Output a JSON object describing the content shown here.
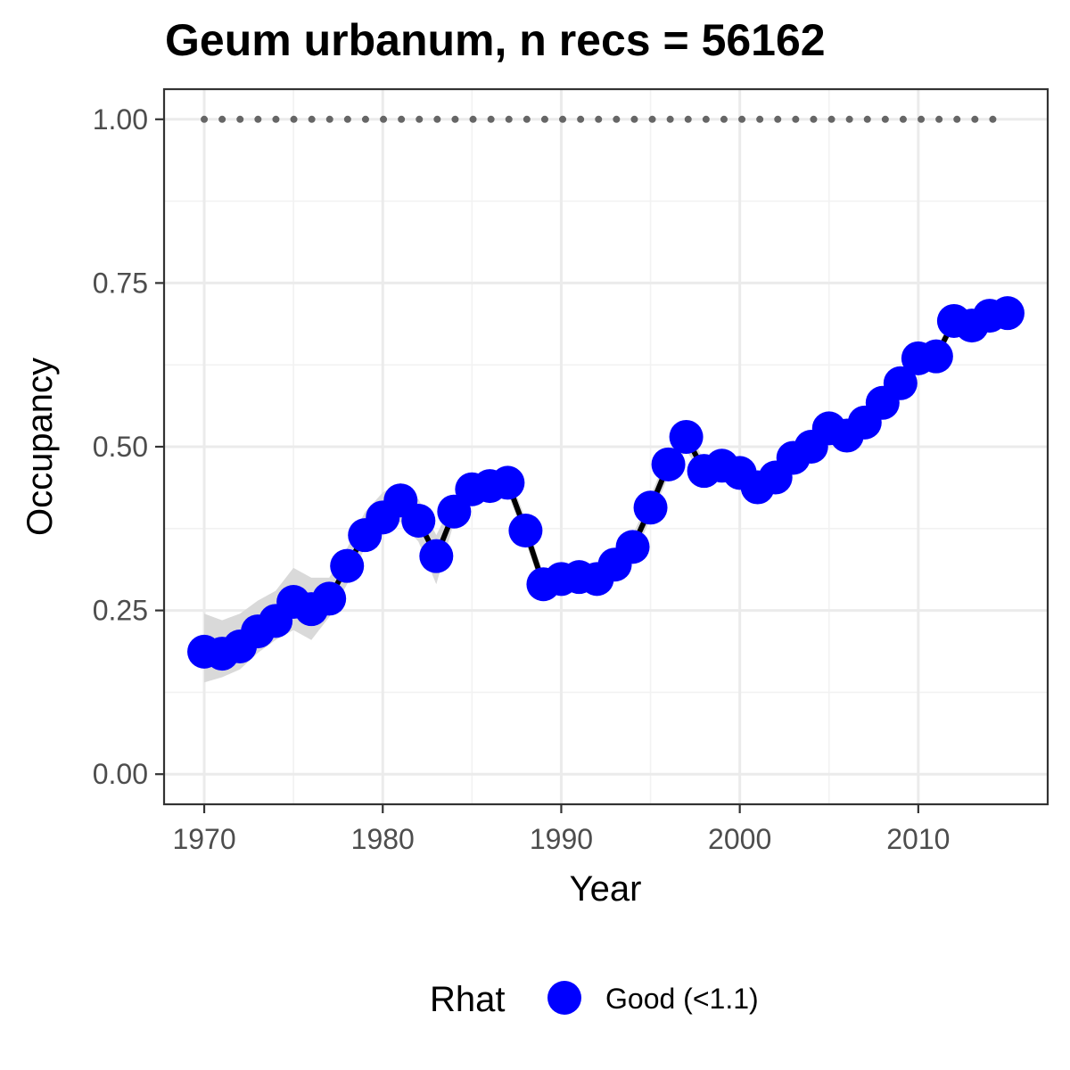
{
  "chart_data": {
    "type": "line",
    "title": "Geum urbanum, n recs = 56162",
    "xlabel": "Year",
    "ylabel": "Occupancy",
    "xlim": [
      1967.8,
      1717.0
    ],
    "ylim": [
      -0.046,
      1.046
    ],
    "x_ticks": [
      1970,
      1980,
      1990,
      2000,
      2010
    ],
    "x_tick_labels": [
      "1970",
      "1980",
      "1990",
      "2000",
      "2010"
    ],
    "y_ticks": [
      0.0,
      0.25,
      0.5,
      0.75,
      1.0
    ],
    "y_tick_labels": [
      "0.00",
      "0.25",
      "0.50",
      "0.75",
      "1.00"
    ],
    "grid": true,
    "legend": {
      "title": "Rhat",
      "placement": "bottom",
      "entries": [
        {
          "label": "Good (<1.1)",
          "color": "#0000ff"
        }
      ]
    },
    "colors": {
      "points": "#0000ff",
      "line": "#000000",
      "ribbon": "#d9d9d9",
      "reference": "#666666"
    },
    "reference_line": {
      "y": 1.0,
      "style": "dotted",
      "x": [
        1970,
        2015
      ]
    },
    "series": [
      {
        "x": [
          1970,
          1971,
          1972,
          1973,
          1974,
          1975,
          1976,
          1977,
          1978,
          1979,
          1980,
          1981,
          1982,
          1983,
          1984,
          1985,
          1986,
          1987,
          1988,
          1989,
          1990,
          1991,
          1992,
          1993,
          1994,
          1995,
          1996,
          1997,
          1998,
          1999,
          2000,
          2001,
          2002,
          2003,
          2004,
          2005,
          2006,
          2007,
          2008,
          2009,
          2010,
          2011,
          2012,
          2013,
          2014,
          2015
        ],
        "y": [
          0.187,
          0.184,
          0.195,
          0.218,
          0.234,
          0.263,
          0.252,
          0.268,
          0.318,
          0.365,
          0.392,
          0.418,
          0.387,
          0.333,
          0.401,
          0.435,
          0.44,
          0.445,
          0.372,
          0.29,
          0.298,
          0.301,
          0.298,
          0.32,
          0.347,
          0.407,
          0.473,
          0.515,
          0.463,
          0.471,
          0.46,
          0.438,
          0.453,
          0.483,
          0.5,
          0.528,
          0.517,
          0.537,
          0.567,
          0.597,
          0.635,
          0.638,
          0.692,
          0.685,
          0.7,
          0.704
        ],
        "lower": [
          0.14,
          0.148,
          0.16,
          0.185,
          0.205,
          0.22,
          0.205,
          0.24,
          0.29,
          0.345,
          0.37,
          0.385,
          0.355,
          0.29,
          0.385,
          0.42,
          0.425,
          0.43,
          0.355,
          0.275,
          0.285,
          0.29,
          0.285,
          0.305,
          0.33,
          0.39,
          0.455,
          0.495,
          0.45,
          0.46,
          0.445,
          0.425,
          0.44,
          0.47,
          0.485,
          0.515,
          0.505,
          0.525,
          0.555,
          0.585,
          0.625,
          0.628,
          0.682,
          0.675,
          0.69,
          0.694
        ],
        "upper": [
          0.245,
          0.235,
          0.245,
          0.265,
          0.28,
          0.315,
          0.3,
          0.3,
          0.345,
          0.4,
          0.43,
          0.445,
          0.42,
          0.365,
          0.42,
          0.455,
          0.455,
          0.46,
          0.39,
          0.305,
          0.312,
          0.312,
          0.312,
          0.335,
          0.365,
          0.425,
          0.49,
          0.535,
          0.478,
          0.485,
          0.475,
          0.452,
          0.468,
          0.497,
          0.515,
          0.542,
          0.53,
          0.55,
          0.58,
          0.61,
          0.645,
          0.648,
          0.702,
          0.695,
          0.71,
          0.714
        ]
      }
    ]
  }
}
